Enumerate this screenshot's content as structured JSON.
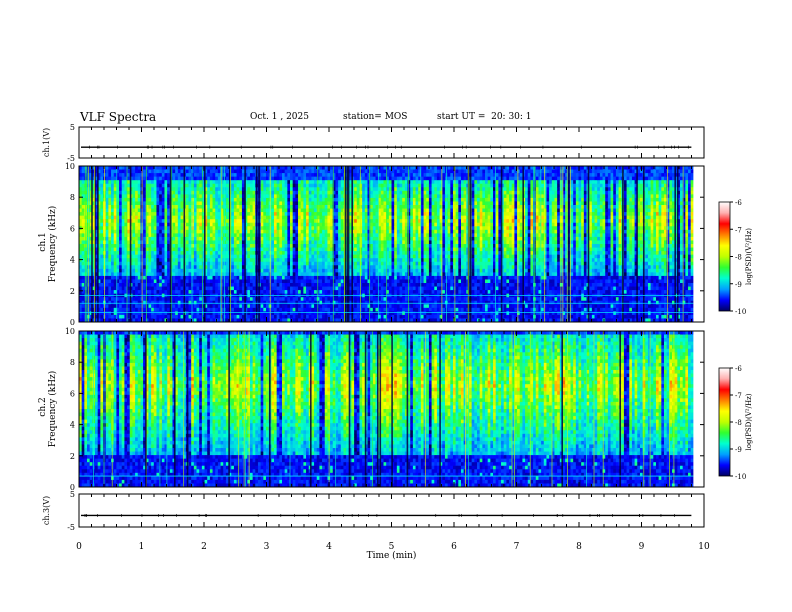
{
  "header": {
    "title": "VLF Spectra",
    "date": "Oct. 1 , 2025",
    "station": "station= MOS",
    "start": "start UT =  20: 30: 1"
  },
  "chart_data": {
    "type": "heatmap",
    "title": "VLF Spectra",
    "xlabel": "Time (min)",
    "xlim": [
      0,
      10
    ],
    "xticks": [
      "0",
      "1",
      "2",
      "3",
      "4",
      "5",
      "6",
      "7",
      "8",
      "9",
      "10"
    ],
    "data_end_min": 9.83,
    "waveform_panels": [
      {
        "ylabel": "ch.1(V)",
        "ylim": [
          -5,
          5
        ],
        "yticks": [
          "5",
          "-5"
        ],
        "baseline": -1.5
      },
      {
        "ylabel": "ch.3(V)",
        "ylim": [
          -5,
          5
        ],
        "yticks": [
          "5",
          "-5"
        ],
        "baseline": -1.5
      }
    ],
    "spectrogram_panels": [
      {
        "ylabel_top": "ch.1",
        "ylabel": "Frequency (kHz)",
        "ylim": [
          0,
          10
        ],
        "yticks": [
          "0",
          "2",
          "4",
          "6",
          "8",
          "10"
        ],
        "band_low_khz": 3.0,
        "band_high_khz": 9.2,
        "peak_khz": 6.5,
        "lines_khz": [
          0.6,
          1.2,
          1.7
        ]
      },
      {
        "ylabel_top": "ch.2",
        "ylabel": "Frequency (kHz)",
        "ylim": [
          0,
          10
        ],
        "yticks": [
          "0",
          "2",
          "4",
          "6",
          "8",
          "10"
        ],
        "band_low_khz": 2.0,
        "band_high_khz": 9.8,
        "peak_khz": 6.5,
        "lines_khz": [
          0.7
        ]
      }
    ],
    "colorbar": {
      "label": "log(PSD)(V²/Hz)",
      "range": [
        -10,
        -6
      ],
      "ticks": [
        "-6",
        "-7",
        "-8",
        "-9",
        "-10"
      ],
      "colors": [
        "#000060",
        "#0000ff",
        "#00a0ff",
        "#00ffd0",
        "#30ff30",
        "#c0ff00",
        "#ffff00",
        "#ff8000",
        "#ff0000",
        "#ffb0b0",
        "#ffffff"
      ]
    }
  }
}
